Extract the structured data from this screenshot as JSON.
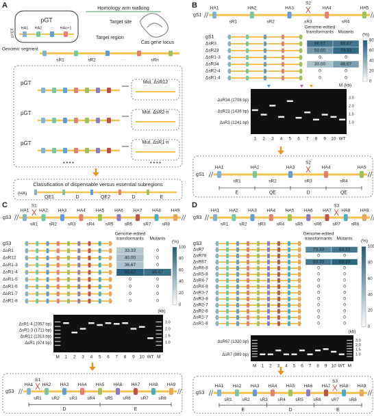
{
  "panel_a": {
    "label": "A",
    "homology_arm_walking": "Homology arm walking",
    "plasmid": "pGT",
    "promoter": "pYEF",
    "arms": [
      "HA1",
      "HA2",
      "···",
      "HAn+1"
    ],
    "target_site": "Target site",
    "target_region": "Target region",
    "cas_locus": "Cas gene locus",
    "genomic_segment": "Genomic segment",
    "regions": [
      "sR1",
      "sR2",
      "···",
      "sRn"
    ],
    "constructs": [
      {
        "plasmid": "pGT",
        "mutant": "Mut. ΔsR12"
      },
      {
        "plasmid": "pGT",
        "mutant": "Mut. ΔsR2-n"
      },
      {
        "plasmid": "pGT",
        "mutant": "Mut. ΔsR1-n"
      }
    ],
    "more": "• • • •",
    "classification": {
      "title": "Classification of dispensable versus essential subregions",
      "arm_label": "(HA)",
      "classes": [
        "QE1",
        "D",
        "QE2",
        "D",
        "E"
      ]
    }
  },
  "panel_b": {
    "label": "B",
    "segment": {
      "name": "gS1",
      "arms": [
        "HA1",
        "HA2",
        "HA3",
        "HA4",
        "HA5"
      ],
      "regions": [
        "sR1",
        "sR2",
        "sR3",
        "sR4"
      ],
      "site": "S2"
    },
    "table": {
      "reference": "gS1",
      "header_left": [
        "Genome-edited",
        "transformants"
      ],
      "header_right": "Mutants",
      "unit": "(%)",
      "colorbar_ticks": [
        80,
        60,
        40,
        20,
        0
      ],
      "rows": [
        {
          "name": "ΔsR3",
          "values": [
            "66.67",
            "66.67"
          ]
        },
        {
          "name": "ΔsR23",
          "values": [
            "50.00",
            "73.33"
          ]
        },
        {
          "name": "ΔsR1-3",
          "values": [
            "0",
            "0"
          ]
        },
        {
          "name": "ΔsR34",
          "values": [
            "30.00",
            "46.67"
          ]
        },
        {
          "name": "ΔsR2-4",
          "values": [
            "0",
            "0"
          ]
        },
        {
          "name": "ΔsR1-4",
          "values": [
            "0",
            "0"
          ]
        }
      ]
    },
    "gel": {
      "bands": [
        "ΔsR34 (1708 bp)",
        "ΔsR23 (1436 bp)",
        "ΔsR3 (1241 bp)"
      ],
      "lanes": [
        "1",
        "2",
        "3",
        "4",
        "5",
        "6",
        "7",
        "8",
        "9",
        "10",
        "WT"
      ],
      "ladder_title": "M (kb)",
      "ladder": [
        "3.0",
        "2.0",
        "1.5",
        "1.0"
      ]
    },
    "result": {
      "segment": {
        "name": "gS1",
        "arms": [
          "HA1",
          "HA2",
          "HA3",
          "HA4",
          "HA5"
        ],
        "regions": [
          "sR1",
          "sR2",
          "sR3",
          "sR4"
        ],
        "site": "S2"
      },
      "classes": [
        "E",
        "QE",
        "D",
        "QE"
      ]
    }
  },
  "panel_c": {
    "label": "C",
    "segment": {
      "name": "gS3",
      "arms": [
        "HA1",
        "HA2",
        "HA3",
        "HA4",
        "HA5",
        "HA6",
        "HA7",
        "HA8",
        "HA9"
      ],
      "regions": [
        "sR1",
        "sR2",
        "sR3",
        "sR4",
        "sR5",
        "sR6",
        "sR7",
        "sR8"
      ],
      "site": "S1"
    },
    "table": {
      "reference": "gS3",
      "header_left": [
        "Genome-edited",
        "transformants"
      ],
      "header_right": "Mutants",
      "unit": "(%)",
      "colorbar_ticks": [
        100,
        80,
        60,
        40,
        20,
        0
      ],
      "rows": [
        {
          "name": "ΔsR1",
          "values": [
            "33.33",
            "0"
          ]
        },
        {
          "name": "ΔsR12",
          "values": [
            "40.00",
            "0"
          ]
        },
        {
          "name": "ΔsR1-3",
          "values": [
            "36.67",
            "0"
          ]
        },
        {
          "name": "ΔsR1-4",
          "values": [
            "96.67",
            "86.67"
          ]
        },
        {
          "name": "ΔsR1-5",
          "values": [
            "0",
            "0"
          ]
        },
        {
          "name": "ΔsR1-6",
          "values": [
            "0",
            "0"
          ]
        },
        {
          "name": "ΔsR1-7",
          "values": [
            "0",
            "0"
          ]
        },
        {
          "name": "ΔsR1-8",
          "values": [
            "0",
            "0"
          ]
        }
      ]
    },
    "gel": {
      "bands": [
        "ΔsR1-4 (2057 bp)",
        "ΔsR1-3 (1711 bp)",
        "ΔsR12 (1313 bp)",
        "ΔsR1 (974 bp)"
      ],
      "lanes": [
        "M",
        "1",
        "2",
        "3",
        "4",
        "5",
        "6",
        "7",
        "8",
        "9",
        "10",
        "WT",
        "M"
      ],
      "ladder_title": "(kb)",
      "ladder": [
        "3.0",
        "2.0",
        "1.5",
        "1.0"
      ]
    },
    "result": {
      "segment": {
        "name": "gS3",
        "arms": [
          "HA1",
          "HA2",
          "HA3",
          "HA4",
          "HA5",
          "HA6",
          "HA7",
          "HA8",
          "HA9"
        ],
        "regions": [
          "sR1",
          "sR2",
          "sR3",
          "sR4",
          "sR5",
          "sR6",
          "sR7",
          "sR8"
        ],
        "site": "S1"
      },
      "classes": [
        "D",
        "E"
      ]
    }
  },
  "panel_d": {
    "label": "D",
    "segment": {
      "name": "gS3",
      "arms": [
        "HA1",
        "HA2",
        "HA3",
        "HA4",
        "HA5",
        "HA6",
        "HA7",
        "HA8",
        "HA9"
      ],
      "regions": [
        "sR1",
        "sR2",
        "sR3",
        "sR4",
        "sR5",
        "sR6",
        "sR7",
        "sR8"
      ],
      "site": "S3"
    },
    "table": {
      "reference": "gS3",
      "header_left": [
        "Genome-edited",
        "transformants"
      ],
      "header_right": "Mutants",
      "unit": "(%)",
      "colorbar_ticks": [
        100,
        80,
        60,
        40,
        20,
        0
      ],
      "rows": [
        {
          "name": "ΔsR7",
          "values": [
            "73.33",
            "83.33"
          ]
        },
        {
          "name": "ΔsR78",
          "values": [
            "0",
            "0"
          ]
        },
        {
          "name": "ΔsR67",
          "values": [
            "83.33",
            "93.33"
          ]
        },
        {
          "name": "ΔsR6-8",
          "values": [
            "0",
            "0"
          ]
        },
        {
          "name": "ΔsR5-8",
          "values": [
            "0",
            "0"
          ]
        },
        {
          "name": "ΔsR4-7",
          "values": [
            "0",
            "0"
          ]
        },
        {
          "name": "ΔsR4-8",
          "values": [
            "0",
            "0"
          ]
        },
        {
          "name": "ΔsR3-7",
          "values": [
            "0",
            "0"
          ]
        },
        {
          "name": "ΔsR3-8",
          "values": [
            "0",
            "0"
          ]
        },
        {
          "name": "ΔsR2-7",
          "values": [
            "0",
            "0"
          ]
        },
        {
          "name": "ΔsR2-8",
          "values": [
            "0",
            "0"
          ]
        },
        {
          "name": "ΔsR1-7",
          "values": [
            "0",
            "0"
          ]
        },
        {
          "name": "ΔsR1-8",
          "values": [
            "0",
            "0"
          ]
        }
      ]
    },
    "gel": {
      "bands": [
        "ΔsR67 (1320 bp)",
        "ΔsR7 (989 bp)"
      ],
      "lanes": [
        "M",
        "1",
        "2",
        "3",
        "4",
        "5",
        "6",
        "7",
        "8",
        "9",
        "10",
        "WT",
        "M"
      ],
      "ladder_title": "(kb)",
      "ladder": [
        "3.0",
        "2.0",
        "1.5",
        "1.0"
      ]
    },
    "result": {
      "segment": {
        "name": "gS3",
        "arms": [
          "HA1",
          "HA2",
          "HA3",
          "HA4",
          "HA5",
          "HA6",
          "HA7",
          "HA8",
          "HA9"
        ],
        "regions": [
          "sR1",
          "sR2",
          "sR3",
          "sR4",
          "sR5",
          "sR6",
          "sR7",
          "sR8"
        ],
        "site": "S3"
      },
      "classes": [
        "E",
        "D",
        "E"
      ]
    }
  }
}
